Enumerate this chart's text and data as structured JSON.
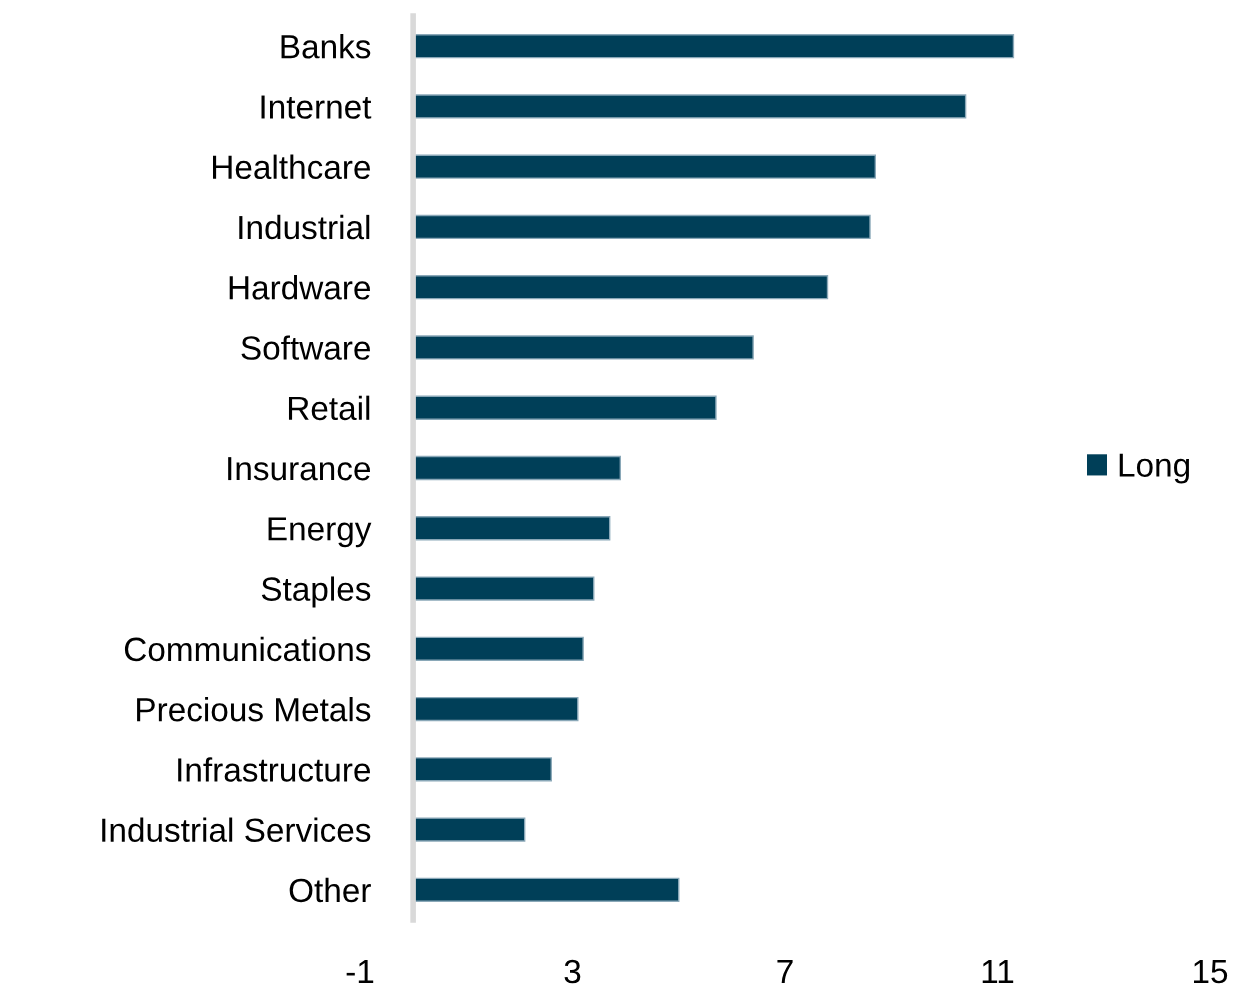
{
  "chart_data": {
    "type": "bar",
    "orientation": "horizontal",
    "categories": [
      "Banks",
      "Internet",
      "Healthcare",
      "Industrial",
      "Hardware",
      "Software",
      "Retail",
      "Insurance",
      "Energy",
      "Staples",
      "Communications",
      "Precious Metals",
      "Infrastructure",
      "Industrial Services",
      "Other"
    ],
    "series": [
      {
        "name": "Long",
        "color": "#003f58",
        "values": [
          11.3,
          10.4,
          8.7,
          8.6,
          7.8,
          6.4,
          5.7,
          3.9,
          3.7,
          3.4,
          3.2,
          3.1,
          2.6,
          2.1,
          5.0
        ]
      }
    ],
    "xlim": [
      -1,
      15
    ],
    "xticks": [
      -1,
      3,
      7,
      11,
      15
    ],
    "grid": false,
    "legend": "right"
  }
}
